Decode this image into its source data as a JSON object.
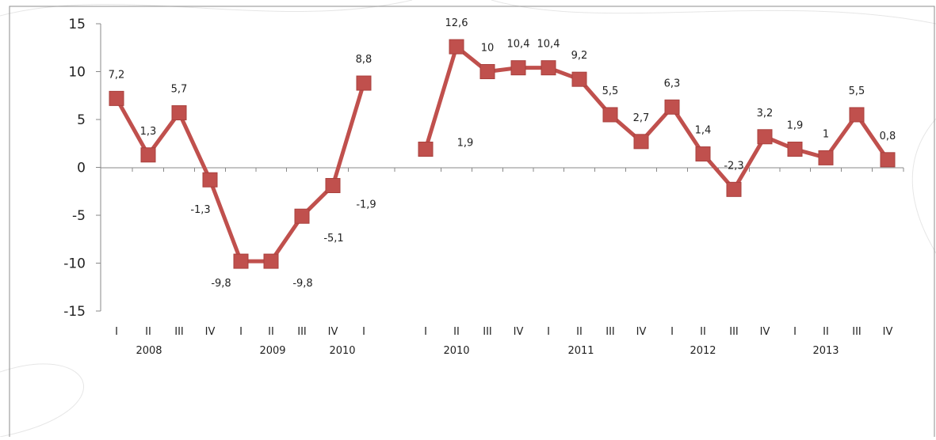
{
  "chart_data": {
    "type": "line",
    "title": "",
    "xlabel": "",
    "ylabel": "",
    "ylim": [
      -15,
      15
    ],
    "yticks": [
      "15",
      "10",
      "5",
      "0",
      "-5",
      "-10",
      "-15"
    ],
    "grid": false,
    "legend": "none",
    "colors": {
      "series": "#c0504d",
      "axis": "#888888",
      "text": "#222222"
    },
    "categories": [
      "I",
      "II",
      "III",
      "IV",
      "I",
      "II",
      "III",
      "IV",
      "I",
      "I",
      "II",
      "III",
      "IV",
      "I",
      "II",
      "III",
      "IV",
      "I",
      "II",
      "III",
      "IV",
      "I",
      "II",
      "III",
      "IV"
    ],
    "year_labels": [
      "2008",
      "2009",
      "2010",
      "2010",
      "2011",
      "2012",
      "2013"
    ],
    "segments": [
      {
        "start": 0,
        "values": [
          7.2,
          1.3,
          5.7,
          -1.3,
          -9.8,
          -9.8,
          -5.1,
          -1.9,
          8.8
        ]
      },
      {
        "start": 9,
        "values": [
          1.9,
          12.6,
          10,
          10.4,
          10.4,
          9.2,
          5.5,
          2.7,
          6.3,
          1.4,
          -2.3,
          3.2,
          1.9,
          1,
          5.5,
          0.8
        ]
      }
    ],
    "data_labels": [
      "7,2",
      "1,3",
      "5,7",
      "-1,3",
      "-9,8",
      "-9,8",
      "-5,1",
      "-1,9",
      "8,8",
      "1,9",
      "12,6",
      "10",
      "10,4",
      "10,4",
      "9,2",
      "5,5",
      "2,7",
      "6,3",
      "1,4",
      "-2,3",
      "3,2",
      "1,9",
      "1",
      "5,5",
      "0,8"
    ]
  }
}
